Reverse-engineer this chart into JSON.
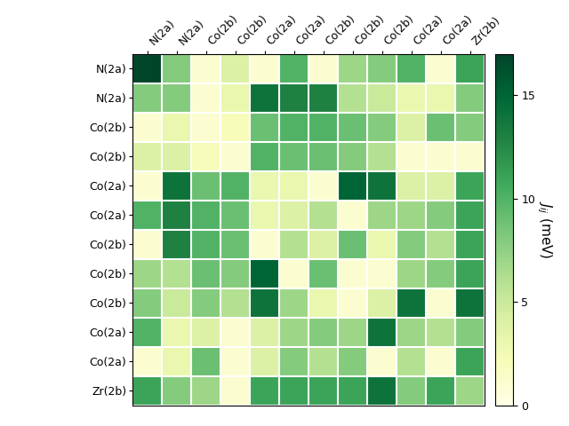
{
  "labels": [
    "N(2a)",
    "N(2a)",
    "Co(2b)",
    "Co(2b)",
    "Co(2a)",
    "Co(2a)",
    "Co(2b)",
    "Co(2b)",
    "Co(2b)",
    "Co(2a)",
    "Co(2a)",
    "Zr(2b)"
  ],
  "matrix": [
    [
      17,
      8,
      1,
      4,
      1,
      10,
      1,
      7,
      8,
      10,
      1,
      11
    ],
    [
      8,
      8,
      1,
      3,
      14,
      13,
      13,
      6,
      5,
      3,
      3,
      8
    ],
    [
      1,
      3,
      1,
      2,
      9,
      10,
      10,
      9,
      8,
      4,
      9,
      8
    ],
    [
      4,
      4,
      2,
      1,
      10,
      9,
      9,
      8,
      6,
      1,
      1,
      1
    ],
    [
      1,
      14,
      9,
      10,
      3,
      3,
      1,
      15,
      14,
      4,
      4,
      11
    ],
    [
      10,
      13,
      10,
      9,
      3,
      4,
      6,
      1,
      7,
      7,
      8,
      11
    ],
    [
      1,
      13,
      10,
      9,
      1,
      6,
      4,
      9,
      3,
      8,
      6,
      11
    ],
    [
      7,
      6,
      9,
      8,
      15,
      1,
      9,
      1,
      1,
      7,
      8,
      11
    ],
    [
      8,
      5,
      8,
      6,
      14,
      7,
      3,
      1,
      4,
      14,
      1,
      14
    ],
    [
      10,
      3,
      4,
      1,
      4,
      7,
      8,
      7,
      14,
      7,
      6,
      8
    ],
    [
      1,
      3,
      9,
      1,
      4,
      8,
      6,
      8,
      1,
      6,
      1,
      11
    ],
    [
      11,
      8,
      7,
      1,
      11,
      11,
      11,
      11,
      14,
      8,
      11,
      7
    ]
  ],
  "vmin": 0,
  "vmax": 17,
  "colorbar_label": "$J_{ij}$ (meV)",
  "colorbar_ticks": [
    0,
    5,
    10,
    15
  ],
  "cmap": "YlGn",
  "figsize": [
    6.4,
    4.8
  ],
  "dpi": 100,
  "title_fontsize": 9,
  "label_fontsize": 9
}
